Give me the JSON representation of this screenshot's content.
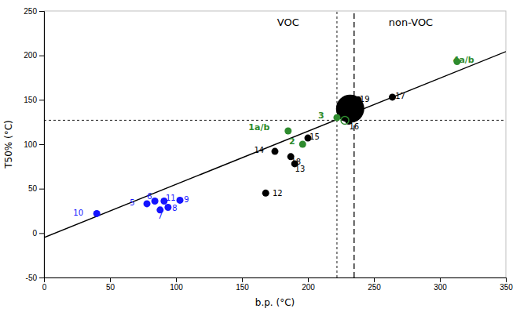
{
  "chart_data": {
    "type": "scatter",
    "xlabel": "b.p. (°C)",
    "ylabel": "T50% (°C)",
    "xlim": [
      0,
      350
    ],
    "ylim": [
      -50,
      250
    ],
    "xticks": [
      0,
      50,
      100,
      150,
      200,
      250,
      300,
      350
    ],
    "yticks": [
      -50,
      0,
      50,
      100,
      150,
      200,
      250
    ],
    "grid": false,
    "series": [
      {
        "type": "line",
        "color": "#000000",
        "line_style": "solid",
        "x": [
          0,
          350
        ],
        "values": [
          -5,
          204.3
        ]
      },
      {
        "type": "scatter",
        "color": "#1414FF",
        "marker": "circle",
        "x": [
          40,
          78,
          84,
          91,
          88,
          94,
          103
        ],
        "values": [
          22,
          33,
          36,
          36,
          26,
          29,
          37
        ],
        "labels": [
          "10",
          "5",
          "6",
          "11",
          "7",
          "8",
          "9"
        ]
      },
      {
        "type": "scatter",
        "color": "#000000",
        "marker": "large-circle",
        "x": [
          232
        ],
        "values": [
          140
        ]
      },
      {
        "type": "scatter",
        "color": "#000000",
        "marker": "circle",
        "x": [
          168,
          175,
          187,
          190,
          200,
          231,
          238,
          264
        ],
        "values": [
          45,
          92,
          86,
          78,
          107,
          126,
          150,
          153
        ],
        "labels": [
          "12",
          "14",
          "18",
          "13",
          "15",
          "16",
          "19",
          "17"
        ]
      },
      {
        "type": "scatter",
        "color": "#2E8B2E",
        "marker": "circle",
        "x": [
          185,
          196,
          222,
          313
        ],
        "values": [
          115,
          100,
          130,
          193
        ],
        "labels": [
          "1a/b",
          "2",
          "3",
          "4a/b"
        ]
      },
      {
        "type": "scatter",
        "color": "#2E8B2E",
        "marker": "open-circle",
        "x": [
          228
        ],
        "values": [
          127
        ]
      }
    ],
    "reference_lines": [
      {
        "axis": "y",
        "value": 127,
        "line_style": "dotted",
        "color": "#000000"
      },
      {
        "axis": "x",
        "value": 222,
        "line_style": "dotted",
        "color": "#000000"
      },
      {
        "axis": "x",
        "value": 235,
        "line_style": "dashed",
        "color": "#000000"
      }
    ],
    "annotations": [
      {
        "x": 185,
        "y": 242,
        "text": "VOC"
      },
      {
        "x": 278,
        "y": 242,
        "text": "non-VOC"
      }
    ]
  }
}
